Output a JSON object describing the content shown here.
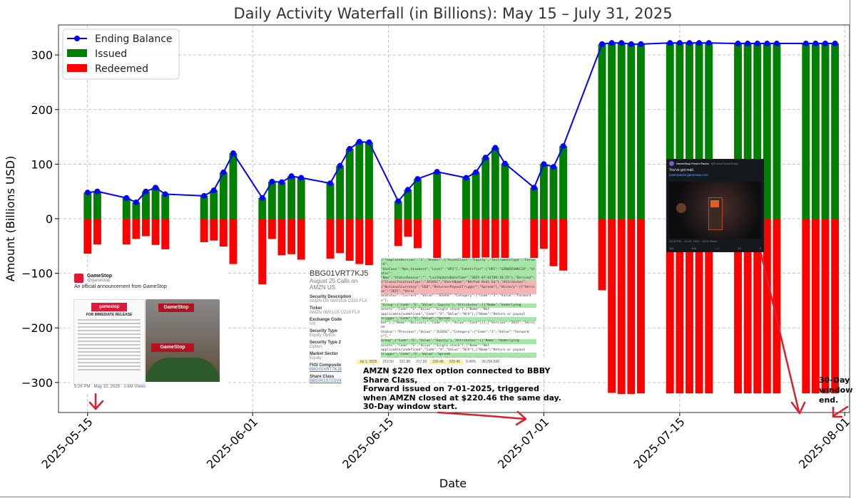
{
  "chart_data": {
    "type": "bar",
    "title": "Daily Activity Waterfall (in Billions): May 15 – July 31, 2025",
    "xlabel": "Date",
    "ylabel": "Amount (Billions USD)",
    "ylim": [
      -355,
      355
    ],
    "yticks": [
      -300,
      -200,
      -100,
      0,
      100,
      200,
      300
    ],
    "ytick_labels": [
      "−300",
      "−200",
      "−100",
      "0",
      "100",
      "200",
      "300"
    ],
    "xlim": [
      "2025-05-12",
      "2025-08-01T12:00"
    ],
    "xticks": [
      "2025-05-15",
      "2025-06-01",
      "2025-06-15",
      "2025-07-01",
      "2025-07-15",
      "2025-08-01"
    ],
    "grid": true,
    "legend_position": "top-left",
    "legend": [
      {
        "label": "Ending Balance",
        "kind": "line-marker",
        "color": "#0000ff"
      },
      {
        "label": "Issued",
        "kind": "bar",
        "color": "#008000"
      },
      {
        "label": "Redeemed",
        "kind": "bar",
        "color": "#ff0000"
      }
    ],
    "dates": [
      "2025-05-15",
      "2025-05-16",
      "2025-05-19",
      "2025-05-20",
      "2025-05-21",
      "2025-05-22",
      "2025-05-23",
      "2025-05-27",
      "2025-05-28",
      "2025-05-29",
      "2025-05-30",
      "2025-06-02",
      "2025-06-03",
      "2025-06-04",
      "2025-06-05",
      "2025-06-06",
      "2025-06-09",
      "2025-06-10",
      "2025-06-11",
      "2025-06-12",
      "2025-06-13",
      "2025-06-16",
      "2025-06-17",
      "2025-06-18",
      "2025-06-20",
      "2025-06-23",
      "2025-06-24",
      "2025-06-25",
      "2025-06-26",
      "2025-06-27",
      "2025-06-30",
      "2025-07-01",
      "2025-07-02",
      "2025-07-03",
      "2025-07-07",
      "2025-07-08",
      "2025-07-09",
      "2025-07-10",
      "2025-07-11",
      "2025-07-14",
      "2025-07-15",
      "2025-07-16",
      "2025-07-17",
      "2025-07-18",
      "2025-07-21",
      "2025-07-22",
      "2025-07-23",
      "2025-07-24",
      "2025-07-25",
      "2025-07-28",
      "2025-07-29",
      "2025-07-30",
      "2025-07-31"
    ],
    "series": [
      {
        "name": "Issued",
        "values": [
          48,
          50,
          38,
          30,
          50,
          57,
          45,
          42,
          52,
          85,
          120,
          38,
          68,
          67,
          78,
          75,
          65,
          97,
          128,
          141,
          140,
          32,
          53,
          73,
          86,
          75,
          85,
          112,
          130,
          101,
          57,
          100,
          95,
          133,
          320,
          322,
          322,
          320,
          320,
          322,
          322,
          322,
          322,
          322,
          321,
          321,
          321,
          321,
          321,
          321,
          321,
          321,
          321
        ]
      },
      {
        "name": "Redeemed",
        "values": [
          -64,
          -47,
          -47,
          -37,
          -32,
          -48,
          -56,
          -43,
          -40,
          -51,
          -83,
          -120,
          -37,
          -67,
          -65,
          -75,
          -73,
          -63,
          -77,
          -83,
          -85,
          -50,
          -33,
          -54,
          -75,
          -76,
          -77,
          -71,
          -72,
          -80,
          -73,
          -55,
          -87,
          -95,
          -131,
          -319,
          -321,
          -321,
          -320,
          -320,
          -320,
          -320,
          -320,
          -320,
          -320,
          -320,
          -320,
          -320,
          -320,
          -320,
          -320,
          -320,
          -320
        ]
      },
      {
        "name": "Ending Balance",
        "values": [
          48,
          50,
          38,
          30,
          50,
          57,
          45,
          42,
          52,
          85,
          120,
          38,
          68,
          67,
          78,
          75,
          65,
          97,
          128,
          141,
          140,
          32,
          53,
          73,
          86,
          75,
          85,
          112,
          130,
          101,
          57,
          100,
          95,
          133,
          320,
          322,
          322,
          320,
          320,
          322,
          322,
          322,
          322,
          322,
          321,
          321,
          321,
          321,
          321,
          321,
          321,
          321,
          321
        ]
      }
    ],
    "annotation_text": [
      "AMZN $220 flex option connected to BBBY",
      "Share Class,",
      "Forward issued on 7-01-2025, triggered",
      "when AMZN closed at $220.46 the same day.",
      "30-Day window start."
    ],
    "annotation_end": [
      "30-Day",
      "window",
      "end."
    ]
  },
  "insets": {
    "tweet": {
      "name": "GameStop",
      "handle": "@gamestop",
      "text": "An official announcement from GameStop",
      "doc_logo": "gamestop",
      "doc_heading": "FOR IMMEDIATE RELEASE",
      "sign": "GameStop",
      "sign2": "GameStop",
      "footer": "5:26 PM · May 15, 2025 · 1.6M Views"
    },
    "bbg": {
      "title": "BBG01VRT7KJ5",
      "subtitle_1": "August 25 Calls on",
      "subtitle_2": "AMZN US",
      "fields": [
        {
          "label": "Security Description",
          "value": "AMZN US 08/01/25 C220 FLX"
        },
        {
          "label": "Ticker",
          "value": "AMZN 08/01/25 C220 FLX"
        },
        {
          "label": "Exchange Code",
          "value": "US"
        },
        {
          "label": "Security Type",
          "value": "Equity Option"
        },
        {
          "label": "Security Type 2",
          "value": "Option"
        },
        {
          "label": "Market Sector",
          "value": "Equity"
        },
        {
          "label": "FIGI Composite",
          "value": "BBG01VRT7KJ5"
        },
        {
          "label": "Share Class",
          "value": "BBG001S72SV4"
        }
      ]
    },
    "json_lines": [
      "{\"TemplateVersion\":\"1\",\"Header\":{\"AssetClass\":\"Equity\",\"InstrumentType\":\"Forward\",",
      "\"UseCase\":\"Non_Standard\",\"Level\":\"UPI\"},\"Identifier\":{\"UPI\":\"QZNW5EVWKC18\",\"Status\":",
      "\"New\",\"StatusReason\":\"\",\"LastUpdateDateTime\":\"2025-07-01T09:10:15\"},\"Derived\":",
      "{\"ClassificationType\":\"JESXSC\",\"ShortName\":\"NA/Fwd Bskt Eq\"},\"Attributes\":",
      "{\"NotionalCurrency\":\"USD\",\"ReturnorPayoutTrigger\":\"Spread\"},\"History\":[{\"Version\":\"2021\",\"Versi",
      "onStatus\":\"Current\",\"Value\":\"JESXSC\",\"Category\":{\"Code\":\"J\",\"Value\":\"Forwards\"},",
      "\"Group\":{\"Code\":\"E\",\"Value\":\"Equity\"},\"Attributes\":[{\"Name\":\"Underlying",
      "assets\",\"Code\":\"S\",\"Value\":\"Single stock\"},{\"Name\":\"Not",
      "applicable/undefined\",\"Code\":\"X\",\"Value\":\"N/A\"},{\"Name\":\"Return or payout",
      "trigger\",\"Code\":\"S\",\"Value\":\"Spread",
      "bet\"},{\"Name\":\"Delivery\",\"Code\":\"C\",\"Value\":\"Cash\"}]},{\"Version\":\"2015\",\"Version",
      "Status\":\"Previous\",\"Value\":\"JESXSC\",\"Category\":{\"Code\":\"J\",\"Value\":\"Forwards\"},\"",
      "Group\":{\"Code\":\"E\",\"Value\":\"Equity\"},\"Attributes\":[{\"Name\":\"Underlying",
      "assets\",\"Code\":\"S\",\"Value\":\"Single stock\"},{\"Name\":\"Not",
      "applicable/undefined\",\"Code\":\"X\",\"Value\":\"N/A\"},{\"Name\":\"Return or payout",
      "trigger\",\"Code\":\"S\",\"Value\":\"Spread",
      "bet\"},{\"Name\":\"Delivery\",\"Code\":\"C\",\"Value\":\"Cash\"}]}],\"Attributes\":{\"UnderlyingInstrument\":",
      "\"Single stock\",\"UnderlyingAssetType\":\"Single",
      "stock\"},\"Underlier\":{\"UnderlyingCharacteristic\":\"Single\",\"UnderlyingInstrumentIndexProp\":",
      "\"BBG001S72SV4\"}},\"ReturnorPayoutTrigger\":\"Spread\",\"DeliveryType\":\"CASH\"}]}"
    ],
    "price_row": [
      "Jul 1, 2025",
      "219.50",
      "221.88",
      "217.93",
      "220.46",
      "220.46",
      "0.49%",
      "39,256,830"
    ],
    "gm_tweet": {
      "name": "GameStop Power Packs",
      "handle": "@PowerPacksGmstp",
      "text": "You've got mail.",
      "link": "powerpacks.gamestop.com",
      "footer": "10:00 PM · Jul 29, 2025 · 191K Views",
      "icons": [
        "114",
        "144",
        "1.1K",
        "23",
        "↗"
      ]
    }
  }
}
